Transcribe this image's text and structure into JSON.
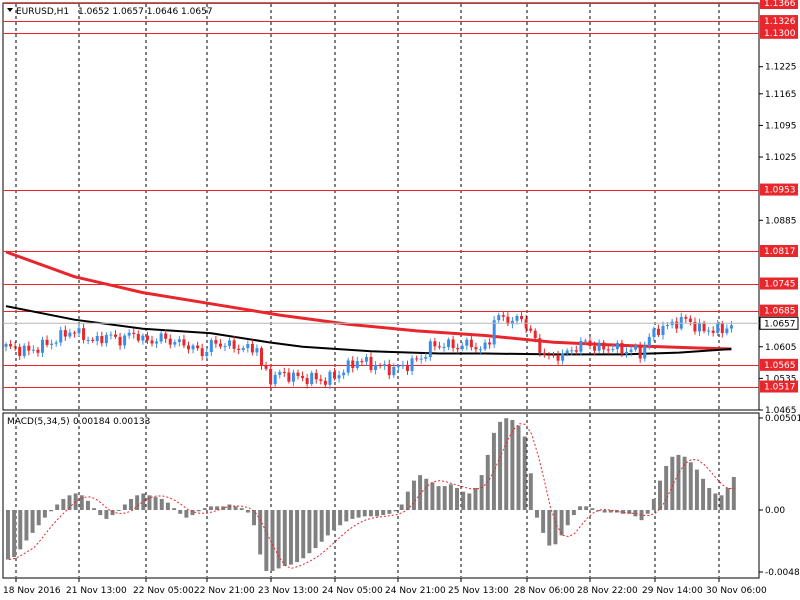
{
  "header": {
    "symbol_label": "EURUSD,H1",
    "ohlc": "1.0652 1.0657 1.0646 1.0657"
  },
  "macd_header": {
    "label": "MACD(5,34,5)",
    "values": "0.00184 0.00133"
  },
  "colors": {
    "bull": "#3a8ee6",
    "bear": "#e8262b",
    "level": "#e8262b",
    "ma_fast": "#e8262b",
    "ma_slow": "#000000",
    "macd_hist": "#808080",
    "macd_signal": "#e8262b",
    "grid": "#000000"
  },
  "chart_data": [
    {
      "type": "candlestick",
      "title": "EURUSD,H1",
      "ylim": [
        1.0465,
        1.1366
      ],
      "y_ticks": [
        "1.1225",
        "1.1165",
        "1.1095",
        "1.1025",
        "1.0885",
        "1.0605",
        "1.0535",
        "1.0465"
      ],
      "x_ticks": [
        "18 Nov 2016",
        "21 Nov 13:00",
        "22 Nov 05:00",
        "22 Nov 21:00",
        "23 Nov 13:00",
        "24 Nov 05:00",
        "24 Nov 21:00",
        "25 Nov 13:00",
        "28 Nov 06:00",
        "28 Nov 22:00",
        "29 Nov 14:00",
        "30 Nov 06:00"
      ],
      "current_price": "1.0657",
      "levels": [
        "1.1366",
        "1.1326",
        "1.1300",
        "1.0953",
        "1.0817",
        "1.0745",
        "1.0685",
        "1.0565",
        "1.0517"
      ],
      "grid": true,
      "close_path": [
        [
          0,
          1.0605
        ],
        [
          10,
          1.0595
        ],
        [
          20,
          1.0615
        ],
        [
          28,
          1.064
        ],
        [
          34,
          1.063
        ],
        [
          38,
          1.0615
        ],
        [
          44,
          1.063
        ],
        [
          50,
          1.062
        ],
        [
          56,
          1.0635
        ],
        [
          62,
          1.0615
        ],
        [
          68,
          1.0625
        ],
        [
          74,
          1.0615
        ],
        [
          80,
          1.0608
        ],
        [
          86,
          1.059
        ],
        [
          90,
          1.061
        ],
        [
          94,
          1.0612
        ],
        [
          100,
          1.0605
        ],
        [
          106,
          1.06
        ],
        [
          111,
          1.0605
        ],
        [
          112,
          1.056
        ],
        [
          116,
          1.0535
        ],
        [
          120,
          1.0545
        ],
        [
          126,
          1.054
        ],
        [
          130,
          1.0535
        ],
        [
          134,
          1.0535
        ],
        [
          140,
          1.053
        ],
        [
          146,
          1.0545
        ],
        [
          150,
          1.056
        ],
        [
          154,
          1.0575
        ],
        [
          158,
          1.057
        ],
        [
          164,
          1.056
        ],
        [
          170,
          1.0555
        ],
        [
          176,
          1.0565
        ],
        [
          182,
          1.058
        ],
        [
          186,
          1.0605
        ],
        [
          192,
          1.061
        ],
        [
          198,
          1.0605
        ],
        [
          204,
          1.0612
        ],
        [
          208,
          1.0595
        ],
        [
          212,
          1.062
        ],
        [
          214,
          1.0665
        ],
        [
          218,
          1.067
        ],
        [
          222,
          1.066
        ],
        [
          226,
          1.067
        ],
        [
          230,
          1.0635
        ],
        [
          234,
          1.06
        ],
        [
          238,
          1.058
        ],
        [
          242,
          1.0585
        ],
        [
          246,
          1.059
        ],
        [
          250,
          1.0605
        ],
        [
          254,
          1.0615
        ],
        [
          258,
          1.0605
        ],
        [
          262,
          1.06
        ],
        [
          266,
          1.0605
        ],
        [
          270,
          1.0595
        ],
        [
          274,
          1.06
        ],
        [
          278,
          1.059
        ],
        [
          282,
          1.0625
        ],
        [
          286,
          1.0645
        ],
        [
          290,
          1.065
        ],
        [
          294,
          1.066
        ],
        [
          298,
          1.0665
        ],
        [
          302,
          1.0652
        ],
        [
          306,
          1.064
        ],
        [
          310,
          1.0645
        ],
        [
          314,
          1.064
        ],
        [
          318,
          1.0657
        ]
      ],
      "ma_fast": [
        [
          0,
          1.0815
        ],
        [
          30,
          1.076
        ],
        [
          60,
          1.0725
        ],
        [
          90,
          1.07
        ],
        [
          120,
          1.0675
        ],
        [
          150,
          1.0655
        ],
        [
          180,
          1.064
        ],
        [
          210,
          1.063
        ],
        [
          240,
          1.0615
        ],
        [
          270,
          1.0608
        ],
        [
          300,
          1.0603
        ],
        [
          318,
          1.06
        ]
      ],
      "ma_slow": [
        [
          0,
          1.0695
        ],
        [
          30,
          1.0665
        ],
        [
          60,
          1.0645
        ],
        [
          90,
          1.0635
        ],
        [
          115,
          1.0615
        ],
        [
          130,
          1.0605
        ],
        [
          160,
          1.0595
        ],
        [
          190,
          1.059
        ],
        [
          210,
          1.059
        ],
        [
          240,
          1.0588
        ],
        [
          270,
          1.0588
        ],
        [
          295,
          1.0592
        ],
        [
          318,
          1.06
        ]
      ]
    },
    {
      "type": "bar",
      "title": "MACD(5,34,5)",
      "ylim": [
        -0.00488,
        0.00501
      ],
      "y_ticks": [
        "0.00501",
        "0.00",
        "-0.00488"
      ],
      "series": [
        {
          "name": "MACD(5,34,5)",
          "values": [
            -0.0039,
            -0.0037,
            -0.0031,
            -0.0024,
            -0.0018,
            -0.0012,
            -0.0006,
            -0.0001,
            0.0003,
            0.0006,
            0.0008,
            0.0009,
            0.0008,
            0.0005,
            0.0001,
            -0.0004,
            -0.0007,
            -0.0004,
            0.0,
            0.0003,
            0.0006,
            0.0008,
            0.0009,
            0.0008,
            0.0007,
            0.0006,
            0.0004,
            0.0001,
            -0.0003,
            -0.0006,
            -0.0004,
            -0.0001,
            0.0001,
            0.0002,
            0.0002,
            0.0002,
            0.0003,
            0.0002,
            0.0001,
            -0.0002,
            -0.0012,
            -0.0035,
            -0.0048,
            -0.0048,
            -0.0046,
            -0.0044,
            -0.0043,
            -0.0041,
            -0.0038,
            -0.0034,
            -0.003,
            -0.0025,
            -0.002,
            -0.0016,
            -0.0012,
            -0.0009,
            -0.0007,
            -0.0006,
            -0.0005,
            -0.0005,
            -0.0005,
            -0.0004,
            -0.0003,
            -0.0001,
            0.0003,
            0.001,
            0.0016,
            0.0019,
            0.0017,
            0.0015,
            0.0013,
            0.0013,
            0.0014,
            0.0012,
            0.001,
            0.0009,
            0.0012,
            0.0019,
            0.003,
            0.0042,
            0.0048,
            0.005,
            0.0049,
            0.0046,
            0.004,
            0.002,
            -0.0006,
            -0.0018,
            -0.0028,
            -0.0027,
            -0.002,
            -0.0012,
            -0.0004,
            0.0002,
            0.0002,
            0.0001,
            -0.0001,
            -0.0002,
            -0.0002,
            -0.0002,
            -0.0003,
            -0.0003,
            -0.0005,
            -0.0008,
            -0.0003,
            0.0006,
            0.0016,
            0.0024,
            0.0029,
            0.003,
            0.0029,
            0.0026,
            0.0022,
            0.0017,
            0.0012,
            0.0009,
            0.0008,
            0.0012,
            0.0018
          ]
        }
      ]
    }
  ]
}
